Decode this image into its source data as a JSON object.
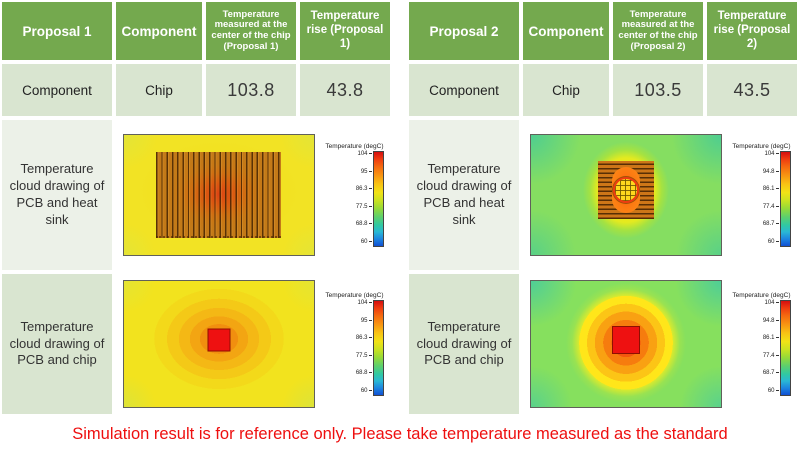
{
  "caption": "Simulation result is for reference only. Please take temperature measured as the standard",
  "colors": {
    "header_green": "#74a94e",
    "row_sage": "#d9e5d0",
    "row_light": "#ecf1e8",
    "caption_red": "#ee0f0f",
    "chip_red": "#ee1111"
  },
  "tables": [
    {
      "title": "Proposal 1",
      "header": [
        "Proposal 1",
        "Component",
        "Temperature measured at the center of the chip (Proposal 1)",
        "Temperature rise (Proposal 1)"
      ],
      "data_row": {
        "label": "Component",
        "component": "Chip",
        "temp_measured": "103.8",
        "temp_rise": "43.8"
      },
      "image_rows": [
        {
          "label": "Temperature cloud drawing of PCB and heat sink"
        },
        {
          "label": "Temperature cloud drawing of PCB and chip"
        }
      ],
      "colorbar": {
        "title": "Temperature (degC)",
        "ticks": [
          "104",
          "95",
          "86.3",
          "77.5",
          "68.8",
          "60"
        ]
      }
    },
    {
      "title": "Proposal 2",
      "header": [
        "Proposal 2",
        "Component",
        "Temperature measured at the center of the chip (Proposal 2)",
        "Temperature rise (Proposal 2)"
      ],
      "data_row": {
        "label": "Component",
        "component": "Chip",
        "temp_measured": "103.5",
        "temp_rise": "43.5"
      },
      "image_rows": [
        {
          "label": "Temperature cloud drawing of PCB and heat sink"
        },
        {
          "label": "Temperature cloud drawing of PCB and chip"
        }
      ],
      "colorbar": {
        "title": "Temperature (degC)",
        "ticks": [
          "104",
          "94.8",
          "86.1",
          "77.4",
          "68.7",
          "60"
        ]
      }
    }
  ]
}
